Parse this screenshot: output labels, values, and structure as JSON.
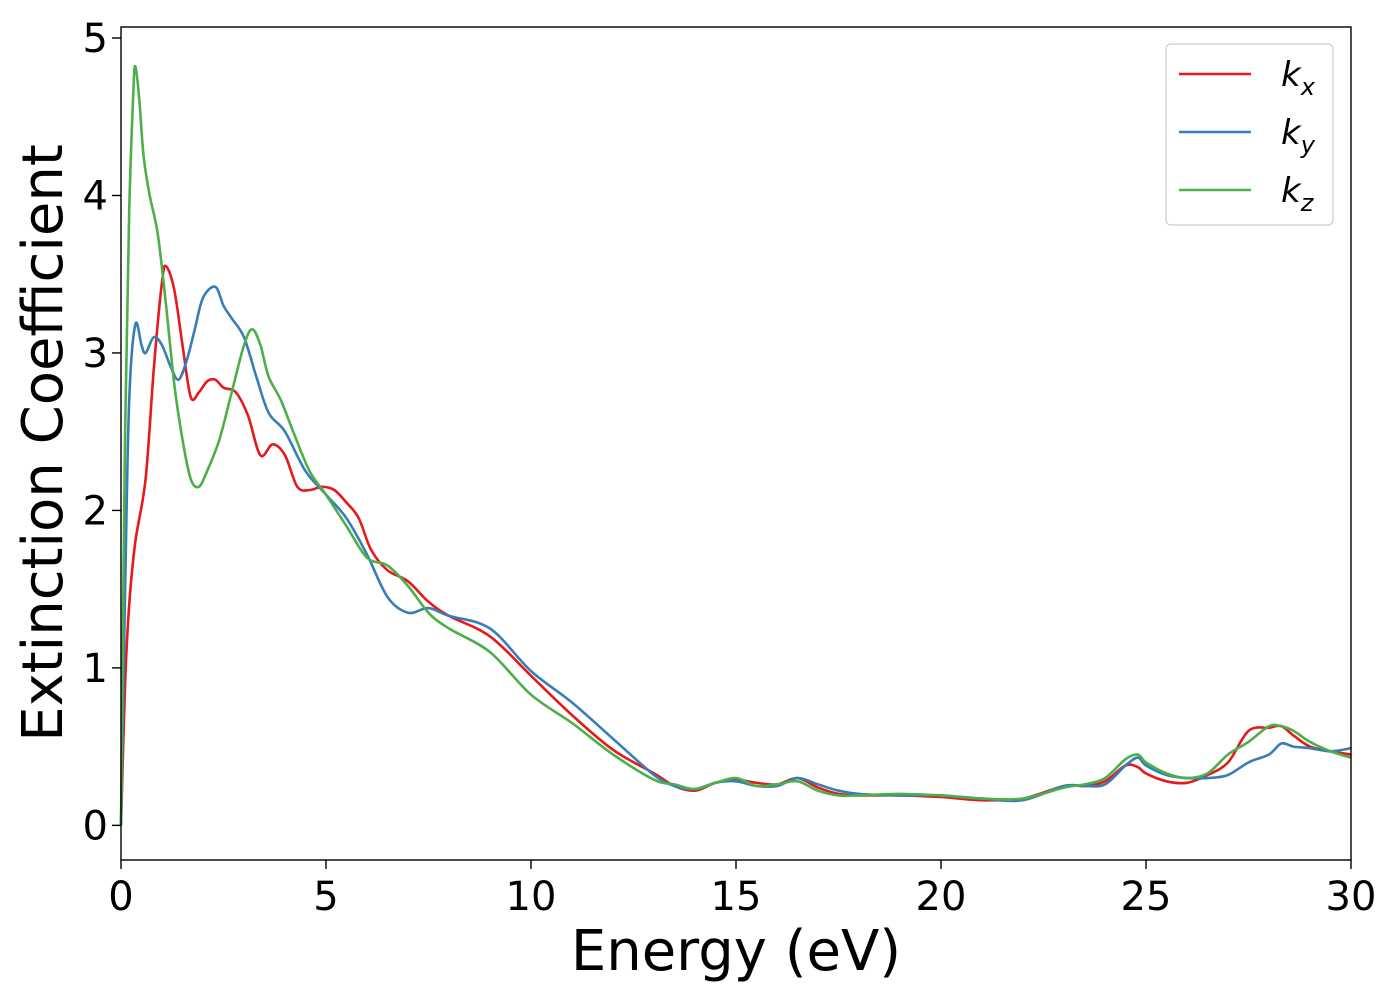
{
  "chart_data": {
    "type": "line",
    "title": "",
    "xlabel": "Energy (eV)",
    "ylabel": "Extinction Coefficient",
    "xlim": [
      0,
      30
    ],
    "ylim": [
      -0.22,
      5.07
    ],
    "xticks": [
      0,
      5,
      10,
      15,
      20,
      25,
      30
    ],
    "yticks": [
      0,
      1,
      2,
      3,
      4,
      5
    ],
    "grid": false,
    "legend_position": "top-right",
    "series": [
      {
        "name": "k_x",
        "legend_base": "k",
        "legend_sub": "x",
        "color": "#e41a1c",
        "x": [
          0,
          0.1,
          0.2,
          0.35,
          0.6,
          0.8,
          1.0,
          1.1,
          1.3,
          1.5,
          1.7,
          1.9,
          2.1,
          2.3,
          2.5,
          2.8,
          3.1,
          3.4,
          3.7,
          4.0,
          4.3,
          4.6,
          4.9,
          5.2,
          5.5,
          5.8,
          6.1,
          6.5,
          7.0,
          7.5,
          8.0,
          9.0,
          10.0,
          11.0,
          12.0,
          13.0,
          13.5,
          14.0,
          14.5,
          15.0,
          15.5,
          16.0,
          16.5,
          17.0,
          17.5,
          18.0,
          19.0,
          20.0,
          21.0,
          22.0,
          23.0,
          23.5,
          24.0,
          24.5,
          24.8,
          25.0,
          25.5,
          26.0,
          26.5,
          27.0,
          27.5,
          28.0,
          28.3,
          28.6,
          29.0,
          29.5,
          30.0
        ],
        "y": [
          0,
          0.9,
          1.4,
          1.8,
          2.2,
          2.9,
          3.45,
          3.55,
          3.4,
          3.05,
          2.72,
          2.75,
          2.82,
          2.83,
          2.78,
          2.75,
          2.6,
          2.35,
          2.42,
          2.35,
          2.15,
          2.13,
          2.15,
          2.13,
          2.05,
          1.95,
          1.75,
          1.62,
          1.55,
          1.42,
          1.33,
          1.2,
          0.95,
          0.7,
          0.48,
          0.33,
          0.25,
          0.22,
          0.27,
          0.29,
          0.27,
          0.26,
          0.3,
          0.24,
          0.2,
          0.19,
          0.19,
          0.18,
          0.16,
          0.17,
          0.25,
          0.25,
          0.28,
          0.38,
          0.37,
          0.33,
          0.28,
          0.27,
          0.32,
          0.4,
          0.6,
          0.62,
          0.63,
          0.57,
          0.5,
          0.47,
          0.45
        ]
      },
      {
        "name": "k_y",
        "legend_base": "k",
        "legend_sub": "y",
        "color": "#377eb8",
        "x": [
          0,
          0.1,
          0.2,
          0.35,
          0.5,
          0.6,
          0.8,
          1.0,
          1.2,
          1.4,
          1.6,
          1.8,
          2.0,
          2.3,
          2.5,
          2.7,
          3.0,
          3.3,
          3.6,
          4.0,
          4.5,
          5.0,
          5.5,
          6.0,
          6.5,
          7.0,
          7.5,
          8.0,
          9.0,
          10.0,
          11.0,
          12.0,
          13.0,
          13.5,
          14.0,
          14.5,
          15.0,
          15.5,
          16.0,
          16.5,
          17.0,
          17.5,
          18.0,
          19.0,
          20.0,
          21.0,
          22.0,
          23.0,
          23.5,
          24.0,
          24.5,
          24.8,
          25.0,
          25.5,
          26.0,
          26.5,
          27.0,
          27.5,
          28.0,
          28.3,
          28.6,
          29.0,
          29.5,
          30.0
        ],
        "y": [
          0,
          1.5,
          2.7,
          3.18,
          3.05,
          3.0,
          3.1,
          3.05,
          2.92,
          2.83,
          2.95,
          3.15,
          3.35,
          3.42,
          3.3,
          3.22,
          3.1,
          2.85,
          2.62,
          2.5,
          2.25,
          2.1,
          1.95,
          1.72,
          1.45,
          1.35,
          1.38,
          1.33,
          1.25,
          0.98,
          0.78,
          0.55,
          0.32,
          0.25,
          0.23,
          0.27,
          0.28,
          0.25,
          0.25,
          0.3,
          0.26,
          0.22,
          0.2,
          0.19,
          0.19,
          0.17,
          0.16,
          0.25,
          0.25,
          0.26,
          0.38,
          0.43,
          0.38,
          0.32,
          0.3,
          0.3,
          0.32,
          0.4,
          0.45,
          0.52,
          0.5,
          0.49,
          0.47,
          0.49
        ]
      },
      {
        "name": "k_z",
        "legend_base": "k",
        "legend_sub": "z",
        "color": "#4daf4a",
        "x": [
          0,
          0.1,
          0.2,
          0.3,
          0.35,
          0.45,
          0.55,
          0.7,
          0.9,
          1.1,
          1.3,
          1.5,
          1.7,
          1.9,
          2.1,
          2.4,
          2.7,
          3.0,
          3.2,
          3.4,
          3.6,
          3.9,
          4.2,
          4.6,
          5.0,
          5.5,
          6.0,
          6.5,
          7.0,
          7.5,
          8.0,
          9.0,
          10.0,
          11.0,
          12.0,
          13.0,
          13.5,
          14.0,
          14.5,
          15.0,
          15.5,
          16.0,
          16.5,
          17.0,
          17.5,
          18.0,
          19.0,
          20.0,
          21.0,
          22.0,
          23.0,
          23.5,
          24.0,
          24.5,
          24.8,
          25.0,
          25.5,
          26.0,
          26.5,
          27.0,
          27.5,
          28.0,
          28.3,
          28.6,
          29.0,
          29.5,
          30.0
        ],
        "y": [
          0,
          2.5,
          3.9,
          4.65,
          4.82,
          4.6,
          4.25,
          4.0,
          3.75,
          3.3,
          2.8,
          2.45,
          2.2,
          2.15,
          2.25,
          2.45,
          2.75,
          3.05,
          3.15,
          3.05,
          2.85,
          2.7,
          2.5,
          2.25,
          2.1,
          1.9,
          1.7,
          1.65,
          1.52,
          1.35,
          1.25,
          1.1,
          0.83,
          0.65,
          0.45,
          0.29,
          0.26,
          0.23,
          0.27,
          0.3,
          0.25,
          0.26,
          0.28,
          0.22,
          0.19,
          0.19,
          0.2,
          0.19,
          0.17,
          0.17,
          0.24,
          0.26,
          0.3,
          0.42,
          0.45,
          0.4,
          0.33,
          0.3,
          0.33,
          0.45,
          0.53,
          0.63,
          0.63,
          0.6,
          0.53,
          0.47,
          0.43
        ]
      }
    ]
  }
}
